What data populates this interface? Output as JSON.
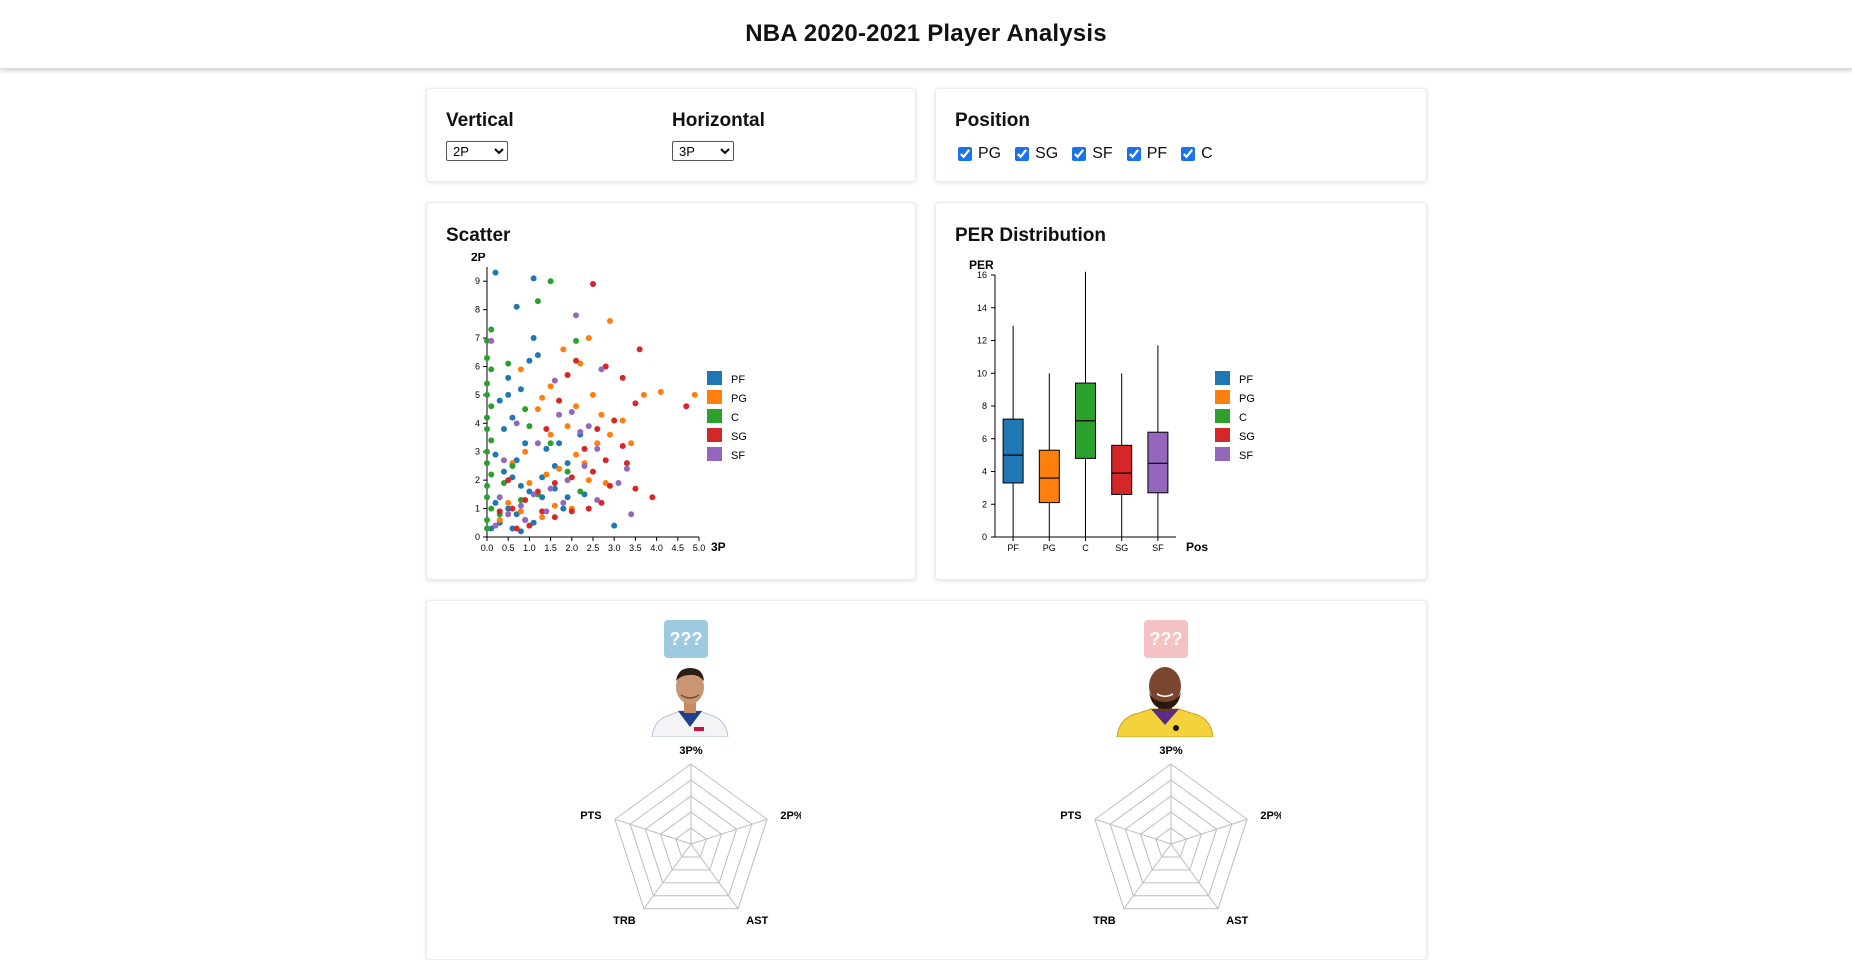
{
  "header": {
    "title": "NBA 2020-2021 Player Analysis"
  },
  "controls": {
    "vertical_label": "Vertical",
    "vertical_value": "2P",
    "horizontal_label": "Horizontal",
    "horizontal_value": "3P"
  },
  "position_filter": {
    "title": "Position",
    "options": [
      {
        "label": "PG",
        "checked": true
      },
      {
        "label": "SG",
        "checked": true
      },
      {
        "label": "SF",
        "checked": true
      },
      {
        "label": "PF",
        "checked": true
      },
      {
        "label": "C",
        "checked": true
      }
    ]
  },
  "colors": {
    "PF": "#1f77b4",
    "PG": "#ff7f0e",
    "C": "#2ca02c",
    "SG": "#d62728",
    "SF": "#9467bd"
  },
  "scatter_panel": {
    "title": "Scatter"
  },
  "box_panel": {
    "title": "PER Distribution"
  },
  "chart_data": [
    {
      "type": "scatter",
      "title": "Scatter",
      "xlabel": "3P",
      "ylabel": "2P",
      "xlim": [
        0,
        5.0
      ],
      "ylim": [
        0,
        9.5
      ],
      "x_ticks": [
        "0.0",
        "0.5",
        "1.0",
        "1.5",
        "2.0",
        "2.5",
        "3.0",
        "3.5",
        "4.0",
        "4.5",
        "5.0"
      ],
      "y_ticks": [
        "0",
        "1",
        "2",
        "3",
        "4",
        "5",
        "6",
        "7",
        "8",
        "9"
      ],
      "legend": [
        "PF",
        "PG",
        "C",
        "SG",
        "SF"
      ],
      "legend_position": "right",
      "series": [
        {
          "name": "PF",
          "points": [
            [
              0.2,
              9.3
            ],
            [
              1.1,
              9.1
            ],
            [
              0.7,
              8.1
            ],
            [
              1.1,
              7.0
            ],
            [
              1.0,
              6.2
            ],
            [
              1.2,
              6.4
            ],
            [
              0.5,
              5.6
            ],
            [
              0.5,
              5.0
            ],
            [
              0.8,
              5.2
            ],
            [
              0.3,
              4.8
            ],
            [
              0.6,
              4.2
            ],
            [
              0.4,
              3.8
            ],
            [
              0.9,
              3.3
            ],
            [
              1.4,
              3.1
            ],
            [
              1.7,
              3.3
            ],
            [
              2.2,
              3.6
            ],
            [
              1.6,
              2.5
            ],
            [
              1.9,
              2.6
            ],
            [
              0.2,
              2.9
            ],
            [
              0.4,
              2.3
            ],
            [
              0.6,
              2.1
            ],
            [
              0.8,
              1.8
            ],
            [
              1.0,
              1.6
            ],
            [
              1.3,
              1.4
            ],
            [
              1.6,
              1.7
            ],
            [
              1.9,
              1.4
            ],
            [
              0.2,
              1.2
            ],
            [
              0.5,
              1.0
            ],
            [
              0.7,
              0.8
            ],
            [
              0.9,
              0.6
            ],
            [
              1.1,
              0.5
            ],
            [
              0.3,
              0.5
            ],
            [
              0.1,
              0.3
            ],
            [
              0.6,
              0.3
            ],
            [
              0.8,
              0.2
            ],
            [
              3.0,
              0.4
            ],
            [
              2.3,
              1.5
            ],
            [
              1.3,
              2.1
            ],
            [
              0.7,
              2.7
            ],
            [
              1.8,
              1.0
            ]
          ]
        },
        {
          "name": "PG",
          "points": [
            [
              2.9,
              7.6
            ],
            [
              2.4,
              7.0
            ],
            [
              1.8,
              6.6
            ],
            [
              2.2,
              6.1
            ],
            [
              1.5,
              5.3
            ],
            [
              2.5,
              5.0
            ],
            [
              3.2,
              4.1
            ],
            [
              2.9,
              3.6
            ],
            [
              2.6,
              3.3
            ],
            [
              2.1,
              2.9
            ],
            [
              1.7,
              2.4
            ],
            [
              1.4,
              2.2
            ],
            [
              2.4,
              2.0
            ],
            [
              2.8,
              1.9
            ],
            [
              4.1,
              5.1
            ],
            [
              4.9,
              5.0
            ],
            [
              3.7,
              5.0
            ],
            [
              1.2,
              4.5
            ],
            [
              1.5,
              3.6
            ],
            [
              0.9,
              3.0
            ],
            [
              0.6,
              2.6
            ],
            [
              1.0,
              1.9
            ],
            [
              0.5,
              1.2
            ],
            [
              0.8,
              0.9
            ],
            [
              1.3,
              0.7
            ],
            [
              2.0,
              1.0
            ],
            [
              1.6,
              1.1
            ],
            [
              0.3,
              0.6
            ],
            [
              2.1,
              4.6
            ],
            [
              3.4,
              3.3
            ],
            [
              0.8,
              5.9
            ],
            [
              1.3,
              4.9
            ],
            [
              2.7,
              4.3
            ],
            [
              2.3,
              2.6
            ],
            [
              1.9,
              3.9
            ]
          ]
        },
        {
          "name": "C",
          "points": [
            [
              1.5,
              9.0
            ],
            [
              1.2,
              8.3
            ],
            [
              0.1,
              7.3
            ],
            [
              0.0,
              6.9
            ],
            [
              0.0,
              6.3
            ],
            [
              0.1,
              5.9
            ],
            [
              0.0,
              5.4
            ],
            [
              0.0,
              5.0
            ],
            [
              0.1,
              4.6
            ],
            [
              0.0,
              4.2
            ],
            [
              0.0,
              3.8
            ],
            [
              0.1,
              3.4
            ],
            [
              0.0,
              3.0
            ],
            [
              0.0,
              2.6
            ],
            [
              0.1,
              2.2
            ],
            [
              0.0,
              1.8
            ],
            [
              0.0,
              1.4
            ],
            [
              0.1,
              1.0
            ],
            [
              0.0,
              0.6
            ],
            [
              0.0,
              0.3
            ],
            [
              2.1,
              6.9
            ],
            [
              1.0,
              3.9
            ],
            [
              0.6,
              2.5
            ],
            [
              1.9,
              2.3
            ],
            [
              1.2,
              1.5
            ],
            [
              0.8,
              1.3
            ],
            [
              0.4,
              1.9
            ],
            [
              0.3,
              0.8
            ],
            [
              1.5,
              3.3
            ],
            [
              2.2,
              1.6
            ],
            [
              0.5,
              6.1
            ],
            [
              0.9,
              4.5
            ]
          ]
        },
        {
          "name": "SG",
          "points": [
            [
              2.5,
              8.9
            ],
            [
              3.6,
              6.6
            ],
            [
              2.8,
              6.0
            ],
            [
              3.2,
              5.6
            ],
            [
              3.5,
              4.7
            ],
            [
              4.7,
              4.6
            ],
            [
              3.0,
              4.1
            ],
            [
              2.6,
              3.8
            ],
            [
              3.2,
              3.2
            ],
            [
              2.8,
              2.7
            ],
            [
              3.3,
              2.6
            ],
            [
              2.5,
              2.3
            ],
            [
              2.0,
              2.1
            ],
            [
              1.6,
              1.9
            ],
            [
              1.2,
              1.6
            ],
            [
              0.9,
              1.3
            ],
            [
              0.6,
              1.0
            ],
            [
              2.9,
              1.8
            ],
            [
              3.9,
              1.4
            ],
            [
              2.4,
              1.0
            ],
            [
              2.0,
              0.9
            ],
            [
              1.6,
              0.7
            ],
            [
              1.3,
              0.9
            ],
            [
              1.0,
              0.4
            ],
            [
              0.7,
              0.3
            ],
            [
              0.3,
              0.9
            ],
            [
              2.1,
              6.2
            ],
            [
              1.7,
              4.8
            ],
            [
              1.4,
              3.8
            ],
            [
              2.7,
              1.2
            ],
            [
              3.5,
              1.7
            ],
            [
              2.3,
              3.1
            ],
            [
              1.9,
              5.7
            ],
            [
              0.5,
              2.0
            ]
          ]
        },
        {
          "name": "SF",
          "points": [
            [
              2.1,
              7.8
            ],
            [
              0.1,
              6.9
            ],
            [
              2.7,
              5.9
            ],
            [
              1.7,
              4.3
            ],
            [
              2.2,
              3.7
            ],
            [
              2.6,
              3.1
            ],
            [
              3.3,
              2.4
            ],
            [
              2.3,
              2.5
            ],
            [
              1.9,
              2.0
            ],
            [
              1.5,
              1.7
            ],
            [
              1.1,
              1.5
            ],
            [
              0.8,
              1.1
            ],
            [
              0.5,
              0.8
            ],
            [
              0.2,
              0.4
            ],
            [
              3.4,
              0.8
            ],
            [
              2.6,
              1.3
            ],
            [
              1.8,
              1.2
            ],
            [
              1.4,
              0.9
            ],
            [
              0.9,
              0.6
            ],
            [
              3.1,
              1.9
            ],
            [
              0.4,
              2.7
            ],
            [
              1.2,
              3.3
            ],
            [
              2.0,
              4.4
            ],
            [
              0.7,
              4.0
            ],
            [
              1.6,
              5.5
            ],
            [
              2.4,
              3.9
            ],
            [
              0.3,
              1.4
            ]
          ]
        }
      ]
    },
    {
      "type": "box",
      "title": "PER Distribution",
      "xlabel": "Pos",
      "ylabel": "PER",
      "ylim": [
        0,
        16
      ],
      "y_ticks": [
        "0",
        "2",
        "4",
        "6",
        "8",
        "10",
        "12",
        "14",
        "16"
      ],
      "legend": [
        "PF",
        "PG",
        "C",
        "SG",
        "SF"
      ],
      "legend_position": "right",
      "categories": [
        "PF",
        "PG",
        "C",
        "SG",
        "SF"
      ],
      "boxes": [
        {
          "name": "PF",
          "min": 0,
          "q1": 3.3,
          "median": 5.0,
          "q3": 7.2,
          "max": 12.9
        },
        {
          "name": "PG",
          "min": 0,
          "q1": 2.1,
          "median": 3.6,
          "q3": 5.3,
          "max": 10.0
        },
        {
          "name": "C",
          "min": 0,
          "q1": 4.8,
          "median": 7.1,
          "q3": 9.4,
          "max": 16.2
        },
        {
          "name": "SG",
          "min": 0,
          "q1": 2.6,
          "median": 3.9,
          "q3": 5.6,
          "max": 10.0
        },
        {
          "name": "SF",
          "min": 0,
          "q1": 2.7,
          "median": 4.5,
          "q3": 6.4,
          "max": 11.7
        }
      ]
    },
    {
      "type": "radar",
      "axes": [
        "3P%",
        "2P%",
        "AST",
        "TRB",
        "PTS"
      ],
      "players": [
        {
          "badge": "???",
          "badge_color": "#9ecae1",
          "image": "player-photo-left"
        },
        {
          "badge": "???",
          "badge_color": "#f4c2c2",
          "image": "player-photo-right"
        }
      ]
    }
  ]
}
